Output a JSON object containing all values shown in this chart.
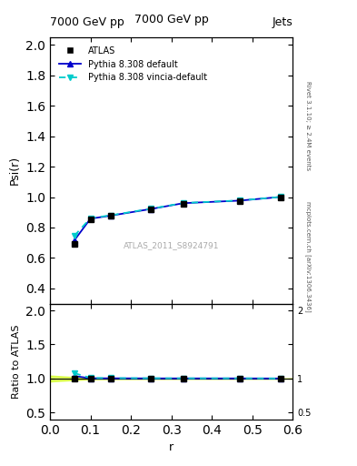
{
  "title_left": "7000 GeV pp",
  "title_right": "Jets",
  "ylabel_main": "Psi(r)",
  "ylabel_ratio": "Ratio to ATLAS",
  "xlabel": "r",
  "right_label_top": "Rivet 3.1.10; ≥ 2.4M events",
  "right_label_bottom": "mcplots.cern.ch [arXiv:1306.3436]",
  "watermark": "ATLAS_2011_S8924791",
  "xlim": [
    0,
    0.6
  ],
  "main_ylim": [
    0.3,
    2.05
  ],
  "ratio_ylim": [
    0.4,
    2.1
  ],
  "main_yticks": [
    0.4,
    0.6,
    0.8,
    1.0,
    1.2,
    1.4,
    1.6,
    1.8,
    2.0
  ],
  "ratio_yticks": [
    0.5,
    1.0,
    1.5,
    2.0
  ],
  "data_x": [
    0.06,
    0.1,
    0.15,
    0.25,
    0.33,
    0.47,
    0.57
  ],
  "data_y": [
    0.69,
    0.855,
    0.875,
    0.92,
    0.958,
    0.975,
    1.0
  ],
  "data_yerr": [
    0.015,
    0.01,
    0.008,
    0.006,
    0.005,
    0.004,
    0.003
  ],
  "pythia_default_x": [
    0.06,
    0.1,
    0.15,
    0.25,
    0.33,
    0.47,
    0.57
  ],
  "pythia_default_y": [
    0.715,
    0.858,
    0.878,
    0.922,
    0.96,
    0.977,
    1.001
  ],
  "pythia_vincia_x": [
    0.06,
    0.1,
    0.15,
    0.25,
    0.33,
    0.47,
    0.57
  ],
  "pythia_vincia_y": [
    0.745,
    0.862,
    0.88,
    0.924,
    0.961,
    0.978,
    1.001
  ],
  "atlas_color": "black",
  "pythia_default_color": "#0000cc",
  "pythia_vincia_color": "#00cccc",
  "ratio_band_color": "#ccff00",
  "ratio_band_alpha": 0.6
}
